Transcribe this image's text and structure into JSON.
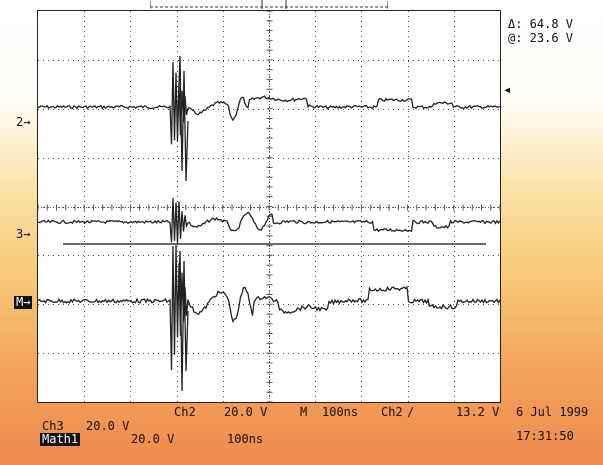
{
  "cursor_readout": {
    "delta": "Δ: 64.8 V",
    "at": "@: 23.6 V"
  },
  "channel_markers": {
    "ch2": "2→",
    "ch3": "3→",
    "math": "M→"
  },
  "trigger_marker": "◂",
  "status_row": {
    "ch2_label": "Ch2",
    "ch2_scale": "20.0 V",
    "timebase_prefix": "M",
    "timebase": "100ns",
    "trigger_source": "Ch2",
    "trigger_slope": "∕",
    "trigger_level": "13.2 V"
  },
  "ch3_row": {
    "label": "Ch3",
    "scale": "20.0 V"
  },
  "math_row": {
    "label": "Math1",
    "scale": "20.0 V",
    "timebase": "100ns"
  },
  "date": "6 Jul 1999",
  "time": "17:31:50",
  "colors": {
    "trace": "#222222",
    "grid": "#555555",
    "screen": "#ffffff"
  }
}
